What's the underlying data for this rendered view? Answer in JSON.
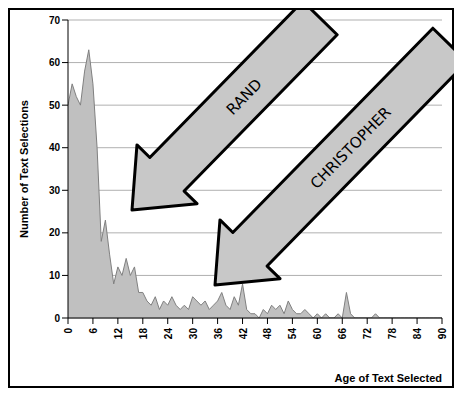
{
  "chart_data": {
    "type": "area",
    "x_label": "Age of Text Selected",
    "y_label": "Number of Text Selections",
    "x": [
      0,
      1,
      2,
      3,
      4,
      5,
      6,
      7,
      8,
      9,
      10,
      11,
      12,
      13,
      14,
      15,
      16,
      17,
      18,
      19,
      20,
      21,
      22,
      23,
      24,
      25,
      26,
      27,
      28,
      29,
      30,
      31,
      32,
      33,
      34,
      35,
      36,
      37,
      38,
      39,
      40,
      41,
      42,
      43,
      44,
      45,
      46,
      47,
      48,
      49,
      50,
      51,
      52,
      53,
      54,
      55,
      56,
      57,
      58,
      59,
      60,
      61,
      62,
      63,
      64,
      65,
      66,
      67,
      68,
      69,
      70,
      71,
      72,
      73,
      74,
      75,
      76,
      77,
      78,
      79,
      80,
      81,
      82,
      83,
      84,
      85,
      86,
      87,
      88,
      89,
      90
    ],
    "values": [
      50,
      55,
      52,
      50,
      58,
      63,
      55,
      40,
      18,
      23,
      15,
      8,
      12,
      10,
      14,
      10,
      12,
      6,
      6,
      4,
      3,
      5,
      2,
      4,
      3,
      5,
      3,
      2,
      3,
      2,
      5,
      4,
      3,
      4,
      2,
      3,
      4,
      6,
      3,
      2,
      5,
      3,
      8,
      2,
      1,
      1,
      0,
      2,
      1,
      3,
      2,
      3,
      1,
      4,
      2,
      1,
      1,
      2,
      1,
      0,
      1,
      0,
      1,
      0,
      0,
      1,
      0,
      6,
      1,
      0,
      0,
      0,
      0,
      0,
      1,
      0,
      0,
      0,
      0,
      0,
      0,
      0,
      0,
      0,
      0,
      0,
      0,
      0,
      0,
      0,
      0
    ],
    "color": "#c0c0c0",
    "xlim": [
      0,
      90
    ],
    "xticks": [
      0,
      6,
      12,
      18,
      24,
      30,
      36,
      42,
      48,
      54,
      60,
      66,
      72,
      78,
      84,
      90
    ],
    "ylim": [
      0,
      70
    ],
    "yticks": [
      0,
      10,
      20,
      30,
      40,
      50,
      60,
      70
    ],
    "grid": true,
    "annotations": [
      {
        "text": "RAND"
      },
      {
        "text": "CHRISTOPHER"
      }
    ]
  }
}
